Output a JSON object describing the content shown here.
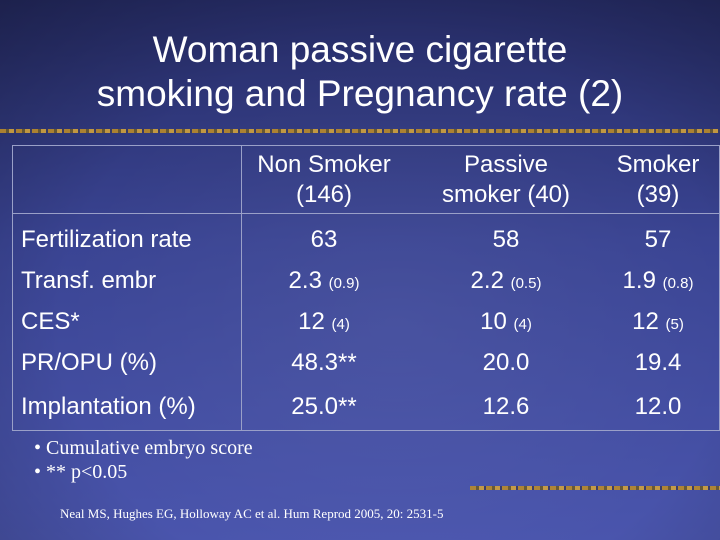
{
  "title": {
    "line1": "Woman passive cigarette",
    "line2": "smoking and Pregnancy rate (2)"
  },
  "table": {
    "headers": [
      {
        "line1": "Non Smoker",
        "line2": "(146)"
      },
      {
        "line1": "Passive",
        "line2": "smoker (40)"
      },
      {
        "line1": "Smoker",
        "line2": "(39)"
      }
    ],
    "rows": [
      {
        "label": "Fertilization rate",
        "cells": [
          {
            "v": "63",
            "sd": ""
          },
          {
            "v": "58",
            "sd": ""
          },
          {
            "v": "57",
            "sd": ""
          }
        ]
      },
      {
        "label": "Transf. embr",
        "cells": [
          {
            "v": "2.3",
            "sd": "(0.9)"
          },
          {
            "v": "2.2",
            "sd": "(0.5)"
          },
          {
            "v": "1.9",
            "sd": "(0.8)"
          }
        ]
      },
      {
        "label": "CES*",
        "cells": [
          {
            "v": "12",
            "sd": "(4)"
          },
          {
            "v": "10",
            "sd": "(4)"
          },
          {
            "v": "12",
            "sd": "(5)"
          }
        ]
      },
      {
        "label": "PR/OPU (%)",
        "cells": [
          {
            "v": "48.3**",
            "sd": ""
          },
          {
            "v": "20.0",
            "sd": ""
          },
          {
            "v": "19.4",
            "sd": ""
          }
        ]
      },
      {
        "label": "Implantation (%)",
        "cells": [
          {
            "v": "25.0**",
            "sd": ""
          },
          {
            "v": "12.6",
            "sd": ""
          },
          {
            "v": "12.0",
            "sd": ""
          }
        ]
      }
    ]
  },
  "footnotes": [
    "• Cumulative embryo score",
    "• ** p<0.05"
  ],
  "reference": "Neal MS, Hughes EG, Holloway AC et al. Hum Reprod 2005, 20: 2531-5"
}
